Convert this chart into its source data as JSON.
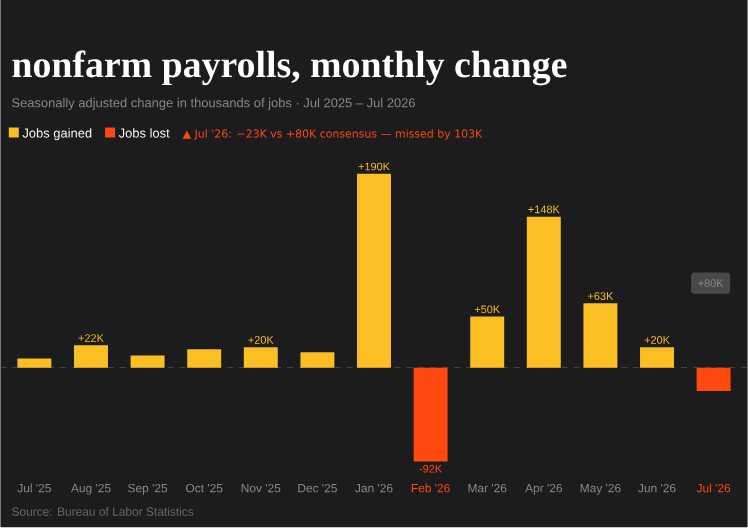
{
  "chart_data": {
    "type": "bar",
    "title": "nonfarm payrolls, monthly change",
    "subtitle": "Seasonally adjusted change in thousands of jobs · Jul 2025 – Jul 2026",
    "categories": [
      "Jul '25",
      "Aug '25",
      "Sep '25",
      "Oct '25",
      "Nov '25",
      "Dec '25",
      "Jan '26",
      "Feb '26",
      "Mar '26",
      "Apr '26",
      "May '26",
      "Jun '26",
      "Jul '26"
    ],
    "series": [
      {
        "name": "Jobs gained",
        "color": "#fbbf24",
        "values": [
          9,
          22,
          12,
          18,
          20,
          15,
          190,
          null,
          50,
          148,
          63,
          20,
          null
        ],
        "value_labels": [
          null,
          "+22K",
          null,
          null,
          "+20K",
          null,
          "+190K",
          null,
          "+50K",
          "+148K",
          "+63K",
          "+20K",
          null
        ]
      },
      {
        "name": "Jobs lost",
        "color": "#ff4a0f",
        "values": [
          null,
          null,
          null,
          null,
          null,
          null,
          null,
          -92,
          null,
          null,
          null,
          null,
          -23
        ],
        "value_labels": [
          null,
          null,
          null,
          null,
          null,
          null,
          null,
          "-92K",
          null,
          null,
          null,
          null,
          null
        ]
      }
    ],
    "ref_lines": [
      {
        "axis": "y",
        "value": 0,
        "color": "#555555",
        "line_style": "dashed"
      }
    ],
    "legend": "top left",
    "annotations": [
      "▲ Jul '26: −23K vs +80K consensus — missed by 103K",
      {
        "text": "+80K",
        "x": "Jul '26"
      },
      "Source: Bureau of Labor Statistics"
    ]
  }
}
